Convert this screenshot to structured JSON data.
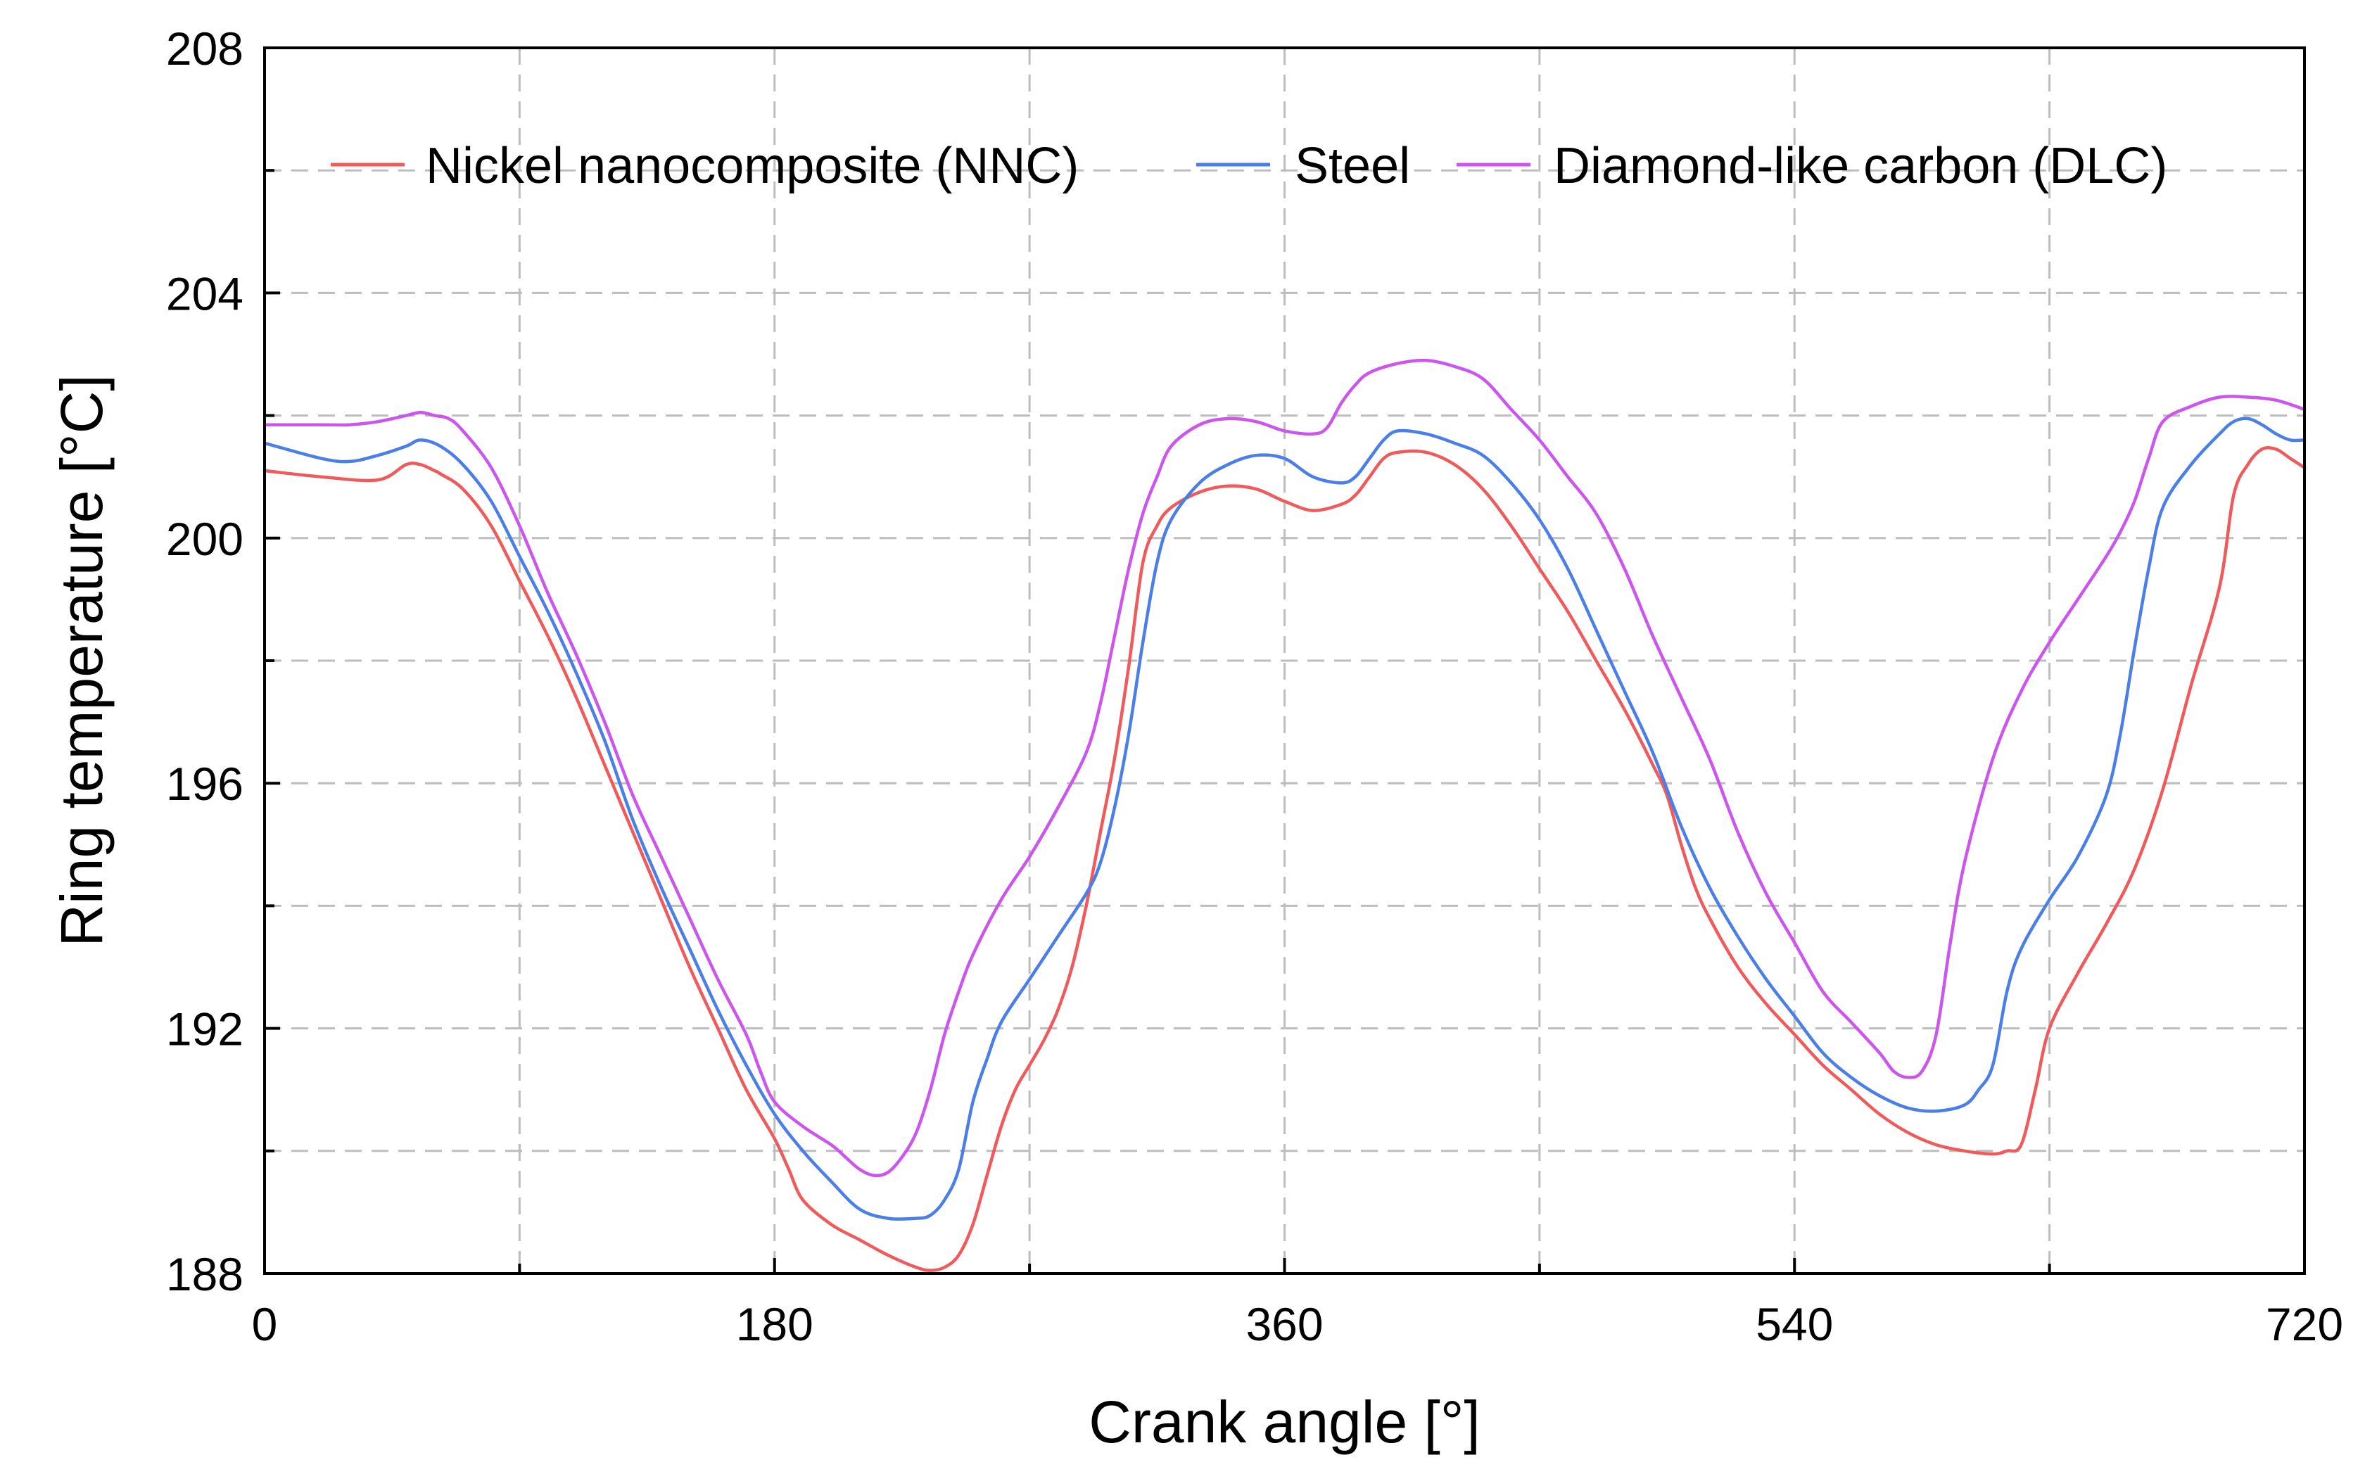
{
  "chart_data": {
    "type": "line",
    "title": "",
    "xlabel": "Crank angle [°]",
    "ylabel": "Ring temperature [°C]",
    "xlim": [
      0,
      720
    ],
    "ylim": [
      188,
      208
    ],
    "x_ticks": [
      0,
      180,
      360,
      540,
      720
    ],
    "x_minor_ticks": [
      90,
      270,
      450,
      630
    ],
    "y_ticks": [
      188,
      192,
      196,
      200,
      204,
      208
    ],
    "y_minor_ticks": [
      190,
      194,
      198,
      202,
      206
    ],
    "x_tick_labels": [
      "0",
      "180",
      "360",
      "540",
      "720"
    ],
    "y_tick_labels": [
      "188",
      "192",
      "196",
      "200",
      "204",
      "208"
    ],
    "grid": true,
    "legend_position": "top",
    "series": [
      {
        "name": "Nickel nanocomposite (NNC)",
        "color": "#f05a5a",
        "points": [
          [
            0,
            201.1
          ],
          [
            20,
            201.0
          ],
          [
            40,
            200.95
          ],
          [
            60,
            201.1
          ],
          [
            50,
            201.2
          ],
          [
            55,
            201.2
          ],
          [
            62,
            201.05
          ],
          [
            70,
            200.8
          ],
          [
            80,
            200.2
          ],
          [
            90,
            199.3
          ],
          [
            100,
            198.4
          ],
          [
            110,
            197.4
          ],
          [
            120,
            196.3
          ],
          [
            130,
            195.2
          ],
          [
            140,
            194.1
          ],
          [
            150,
            193.0
          ],
          [
            160,
            192.0
          ],
          [
            170,
            191.0
          ],
          [
            180,
            190.2
          ],
          [
            185,
            189.7
          ],
          [
            190,
            189.2
          ],
          [
            200,
            188.8
          ],
          [
            210,
            188.55
          ],
          [
            220,
            188.3
          ],
          [
            230,
            188.1
          ],
          [
            235,
            188.05
          ],
          [
            240,
            188.1
          ],
          [
            245,
            188.3
          ],
          [
            250,
            188.8
          ],
          [
            255,
            189.6
          ],
          [
            260,
            190.4
          ],
          [
            265,
            191.0
          ],
          [
            270,
            191.4
          ],
          [
            275,
            191.8
          ],
          [
            280,
            192.3
          ],
          [
            285,
            193.0
          ],
          [
            290,
            194.0
          ],
          [
            295,
            195.2
          ],
          [
            300,
            196.4
          ],
          [
            305,
            197.9
          ],
          [
            310,
            199.6
          ],
          [
            315,
            200.2
          ],
          [
            320,
            200.5
          ],
          [
            330,
            200.75
          ],
          [
            340,
            200.85
          ],
          [
            350,
            200.8
          ],
          [
            360,
            200.6
          ],
          [
            370,
            200.45
          ],
          [
            380,
            200.55
          ],
          [
            385,
            200.7
          ],
          [
            390,
            201.0
          ],
          [
            395,
            201.3
          ],
          [
            400,
            201.4
          ],
          [
            410,
            201.4
          ],
          [
            420,
            201.2
          ],
          [
            430,
            200.8
          ],
          [
            440,
            200.2
          ],
          [
            450,
            199.5
          ],
          [
            460,
            198.8
          ],
          [
            470,
            198.0
          ],
          [
            480,
            197.2
          ],
          [
            490,
            196.3
          ],
          [
            495,
            195.8
          ],
          [
            500,
            195.0
          ],
          [
            505,
            194.3
          ],
          [
            510,
            193.8
          ],
          [
            520,
            193.0
          ],
          [
            530,
            192.4
          ],
          [
            540,
            191.9
          ],
          [
            550,
            191.4
          ],
          [
            560,
            191.0
          ],
          [
            570,
            190.6
          ],
          [
            580,
            190.3
          ],
          [
            590,
            190.1
          ],
          [
            600,
            190.0
          ],
          [
            610,
            189.95
          ],
          [
            615,
            190.0
          ],
          [
            620,
            190.1
          ],
          [
            625,
            191.0
          ],
          [
            630,
            192.0
          ],
          [
            640,
            192.9
          ],
          [
            650,
            193.7
          ],
          [
            660,
            194.6
          ],
          [
            670,
            195.9
          ],
          [
            680,
            197.6
          ],
          [
            690,
            199.2
          ],
          [
            695,
            200.7
          ],
          [
            700,
            201.2
          ],
          [
            705,
            201.45
          ],
          [
            710,
            201.45
          ],
          [
            715,
            201.3
          ],
          [
            720,
            201.15
          ]
        ]
      },
      {
        "name": "Steel",
        "color": "#4a7ee8",
        "points": [
          [
            0,
            201.55
          ],
          [
            20,
            201.3
          ],
          [
            30,
            201.25
          ],
          [
            40,
            201.35
          ],
          [
            50,
            201.5
          ],
          [
            55,
            201.6
          ],
          [
            62,
            201.5
          ],
          [
            70,
            201.2
          ],
          [
            80,
            200.6
          ],
          [
            90,
            199.7
          ],
          [
            100,
            198.8
          ],
          [
            110,
            197.8
          ],
          [
            120,
            196.7
          ],
          [
            130,
            195.4
          ],
          [
            140,
            194.3
          ],
          [
            150,
            193.3
          ],
          [
            160,
            192.3
          ],
          [
            170,
            191.4
          ],
          [
            180,
            190.6
          ],
          [
            190,
            190.0
          ],
          [
            200,
            189.5
          ],
          [
            210,
            189.05
          ],
          [
            220,
            188.9
          ],
          [
            230,
            188.9
          ],
          [
            235,
            188.95
          ],
          [
            240,
            189.2
          ],
          [
            245,
            189.7
          ],
          [
            250,
            190.8
          ],
          [
            255,
            191.5
          ],
          [
            260,
            192.1
          ],
          [
            270,
            192.8
          ],
          [
            280,
            193.5
          ],
          [
            290,
            194.2
          ],
          [
            295,
            194.7
          ],
          [
            300,
            195.6
          ],
          [
            305,
            196.8
          ],
          [
            310,
            198.3
          ],
          [
            315,
            199.6
          ],
          [
            320,
            200.3
          ],
          [
            330,
            200.9
          ],
          [
            340,
            201.2
          ],
          [
            350,
            201.35
          ],
          [
            360,
            201.3
          ],
          [
            370,
            201.0
          ],
          [
            380,
            200.9
          ],
          [
            385,
            201.0
          ],
          [
            390,
            201.3
          ],
          [
            395,
            201.6
          ],
          [
            400,
            201.75
          ],
          [
            410,
            201.7
          ],
          [
            420,
            201.55
          ],
          [
            430,
            201.35
          ],
          [
            440,
            200.9
          ],
          [
            450,
            200.3
          ],
          [
            460,
            199.5
          ],
          [
            470,
            198.5
          ],
          [
            480,
            197.5
          ],
          [
            490,
            196.5
          ],
          [
            500,
            195.3
          ],
          [
            510,
            194.3
          ],
          [
            520,
            193.5
          ],
          [
            530,
            192.8
          ],
          [
            540,
            192.2
          ],
          [
            550,
            191.6
          ],
          [
            560,
            191.2
          ],
          [
            570,
            190.9
          ],
          [
            580,
            190.7
          ],
          [
            590,
            190.65
          ],
          [
            600,
            190.75
          ],
          [
            605,
            191.0
          ],
          [
            610,
            191.4
          ],
          [
            615,
            192.6
          ],
          [
            620,
            193.3
          ],
          [
            630,
            194.1
          ],
          [
            640,
            194.8
          ],
          [
            650,
            195.8
          ],
          [
            655,
            196.8
          ],
          [
            660,
            198.2
          ],
          [
            665,
            199.5
          ],
          [
            670,
            200.5
          ],
          [
            680,
            201.2
          ],
          [
            690,
            201.7
          ],
          [
            695,
            201.9
          ],
          [
            700,
            201.95
          ],
          [
            705,
            201.85
          ],
          [
            710,
            201.7
          ],
          [
            715,
            201.6
          ],
          [
            720,
            201.6
          ]
        ]
      },
      {
        "name": "Diamond-like carbon (DLC)",
        "color": "#cc55ee",
        "points": [
          [
            0,
            201.85
          ],
          [
            20,
            201.85
          ],
          [
            30,
            201.85
          ],
          [
            40,
            201.9
          ],
          [
            50,
            202.0
          ],
          [
            55,
            202.05
          ],
          [
            60,
            202.0
          ],
          [
            65,
            201.95
          ],
          [
            70,
            201.75
          ],
          [
            80,
            201.15
          ],
          [
            90,
            200.2
          ],
          [
            100,
            199.1
          ],
          [
            110,
            198.1
          ],
          [
            120,
            197.0
          ],
          [
            130,
            195.8
          ],
          [
            140,
            194.8
          ],
          [
            150,
            193.8
          ],
          [
            160,
            192.8
          ],
          [
            170,
            191.9
          ],
          [
            175,
            191.3
          ],
          [
            180,
            190.8
          ],
          [
            190,
            190.4
          ],
          [
            200,
            190.1
          ],
          [
            205,
            189.9
          ],
          [
            210,
            189.7
          ],
          [
            215,
            189.6
          ],
          [
            220,
            189.65
          ],
          [
            225,
            189.9
          ],
          [
            230,
            190.3
          ],
          [
            235,
            191.0
          ],
          [
            240,
            191.9
          ],
          [
            245,
            192.6
          ],
          [
            250,
            193.2
          ],
          [
            260,
            194.1
          ],
          [
            270,
            194.8
          ],
          [
            280,
            195.6
          ],
          [
            290,
            196.5
          ],
          [
            295,
            197.3
          ],
          [
            300,
            198.4
          ],
          [
            305,
            199.5
          ],
          [
            310,
            200.4
          ],
          [
            315,
            201.0
          ],
          [
            320,
            201.5
          ],
          [
            330,
            201.85
          ],
          [
            340,
            201.95
          ],
          [
            350,
            201.9
          ],
          [
            360,
            201.75
          ],
          [
            370,
            201.7
          ],
          [
            375,
            201.8
          ],
          [
            380,
            202.2
          ],
          [
            385,
            202.5
          ],
          [
            390,
            202.7
          ],
          [
            400,
            202.85
          ],
          [
            410,
            202.9
          ],
          [
            420,
            202.8
          ],
          [
            430,
            202.6
          ],
          [
            440,
            202.1
          ],
          [
            450,
            201.6
          ],
          [
            460,
            201.0
          ],
          [
            470,
            200.4
          ],
          [
            480,
            199.5
          ],
          [
            490,
            198.4
          ],
          [
            500,
            197.4
          ],
          [
            510,
            196.4
          ],
          [
            520,
            195.2
          ],
          [
            530,
            194.2
          ],
          [
            540,
            193.4
          ],
          [
            550,
            192.6
          ],
          [
            560,
            192.1
          ],
          [
            570,
            191.6
          ],
          [
            575,
            191.3
          ],
          [
            580,
            191.2
          ],
          [
            585,
            191.3
          ],
          [
            590,
            191.9
          ],
          [
            595,
            193.4
          ],
          [
            600,
            194.7
          ],
          [
            610,
            196.4
          ],
          [
            620,
            197.5
          ],
          [
            630,
            198.3
          ],
          [
            640,
            199.0
          ],
          [
            650,
            199.7
          ],
          [
            655,
            200.1
          ],
          [
            660,
            200.6
          ],
          [
            665,
            201.3
          ],
          [
            670,
            201.9
          ],
          [
            680,
            202.15
          ],
          [
            690,
            202.3
          ],
          [
            700,
            202.3
          ],
          [
            710,
            202.25
          ],
          [
            720,
            202.1
          ]
        ]
      }
    ]
  }
}
